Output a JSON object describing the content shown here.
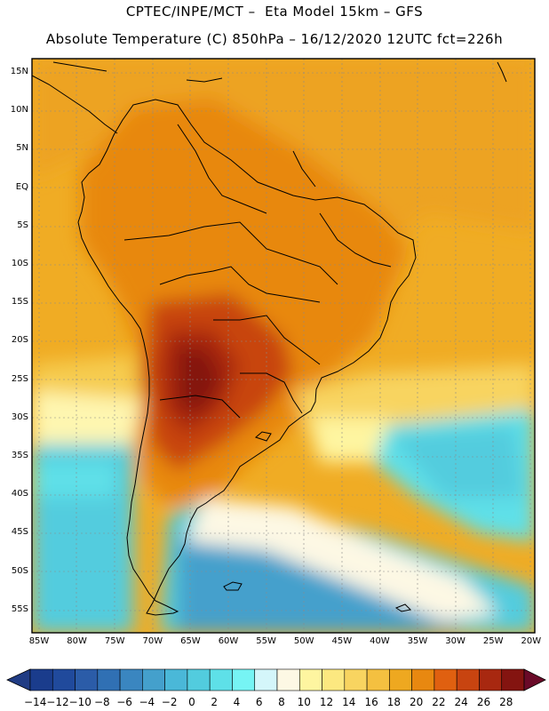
{
  "header": {
    "line1": "CPTEC/INPE/MCT –  Eta Model 15km – GFS",
    "line2": "Absolute Temperature (C) 850hPa – 16/12/2020 12UTC fct=226h"
  },
  "axes": {
    "lat_labels": [
      "15N",
      "10N",
      "5N",
      "EQ",
      "5S",
      "10S",
      "15S",
      "20S",
      "25S",
      "30S",
      "35S",
      "40S",
      "45S",
      "50S",
      "55S"
    ],
    "lon_labels": [
      "85W",
      "80W",
      "75W",
      "70W",
      "65W",
      "60W",
      "55W",
      "50W",
      "45W",
      "40W",
      "35W",
      "30W",
      "25W",
      "20W"
    ]
  },
  "colorbar": {
    "labels": [
      "-14",
      "-12",
      "-10",
      "-8",
      "-6",
      "-4",
      "-2",
      "0",
      "2",
      "4",
      "6",
      "8",
      "10",
      "12",
      "14",
      "16",
      "18",
      "20",
      "22",
      "24",
      "26",
      "28"
    ],
    "colors": [
      "#1a3c8c",
      "#204a9c",
      "#2b5ca8",
      "#3070b4",
      "#3a86c0",
      "#44a0cc",
      "#4ab8d8",
      "#52ccde",
      "#5ee0e8",
      "#76f4f4",
      "#d4f6fa",
      "#fdf8e4",
      "#fef5a0",
      "#fce880",
      "#f8d460",
      "#f4c040",
      "#eea820",
      "#e88810",
      "#e06010",
      "#c84410",
      "#a82810",
      "#841410"
    ],
    "left_arrow_color": "#203c84",
    "right_arrow_color": "#6a0a28"
  }
}
